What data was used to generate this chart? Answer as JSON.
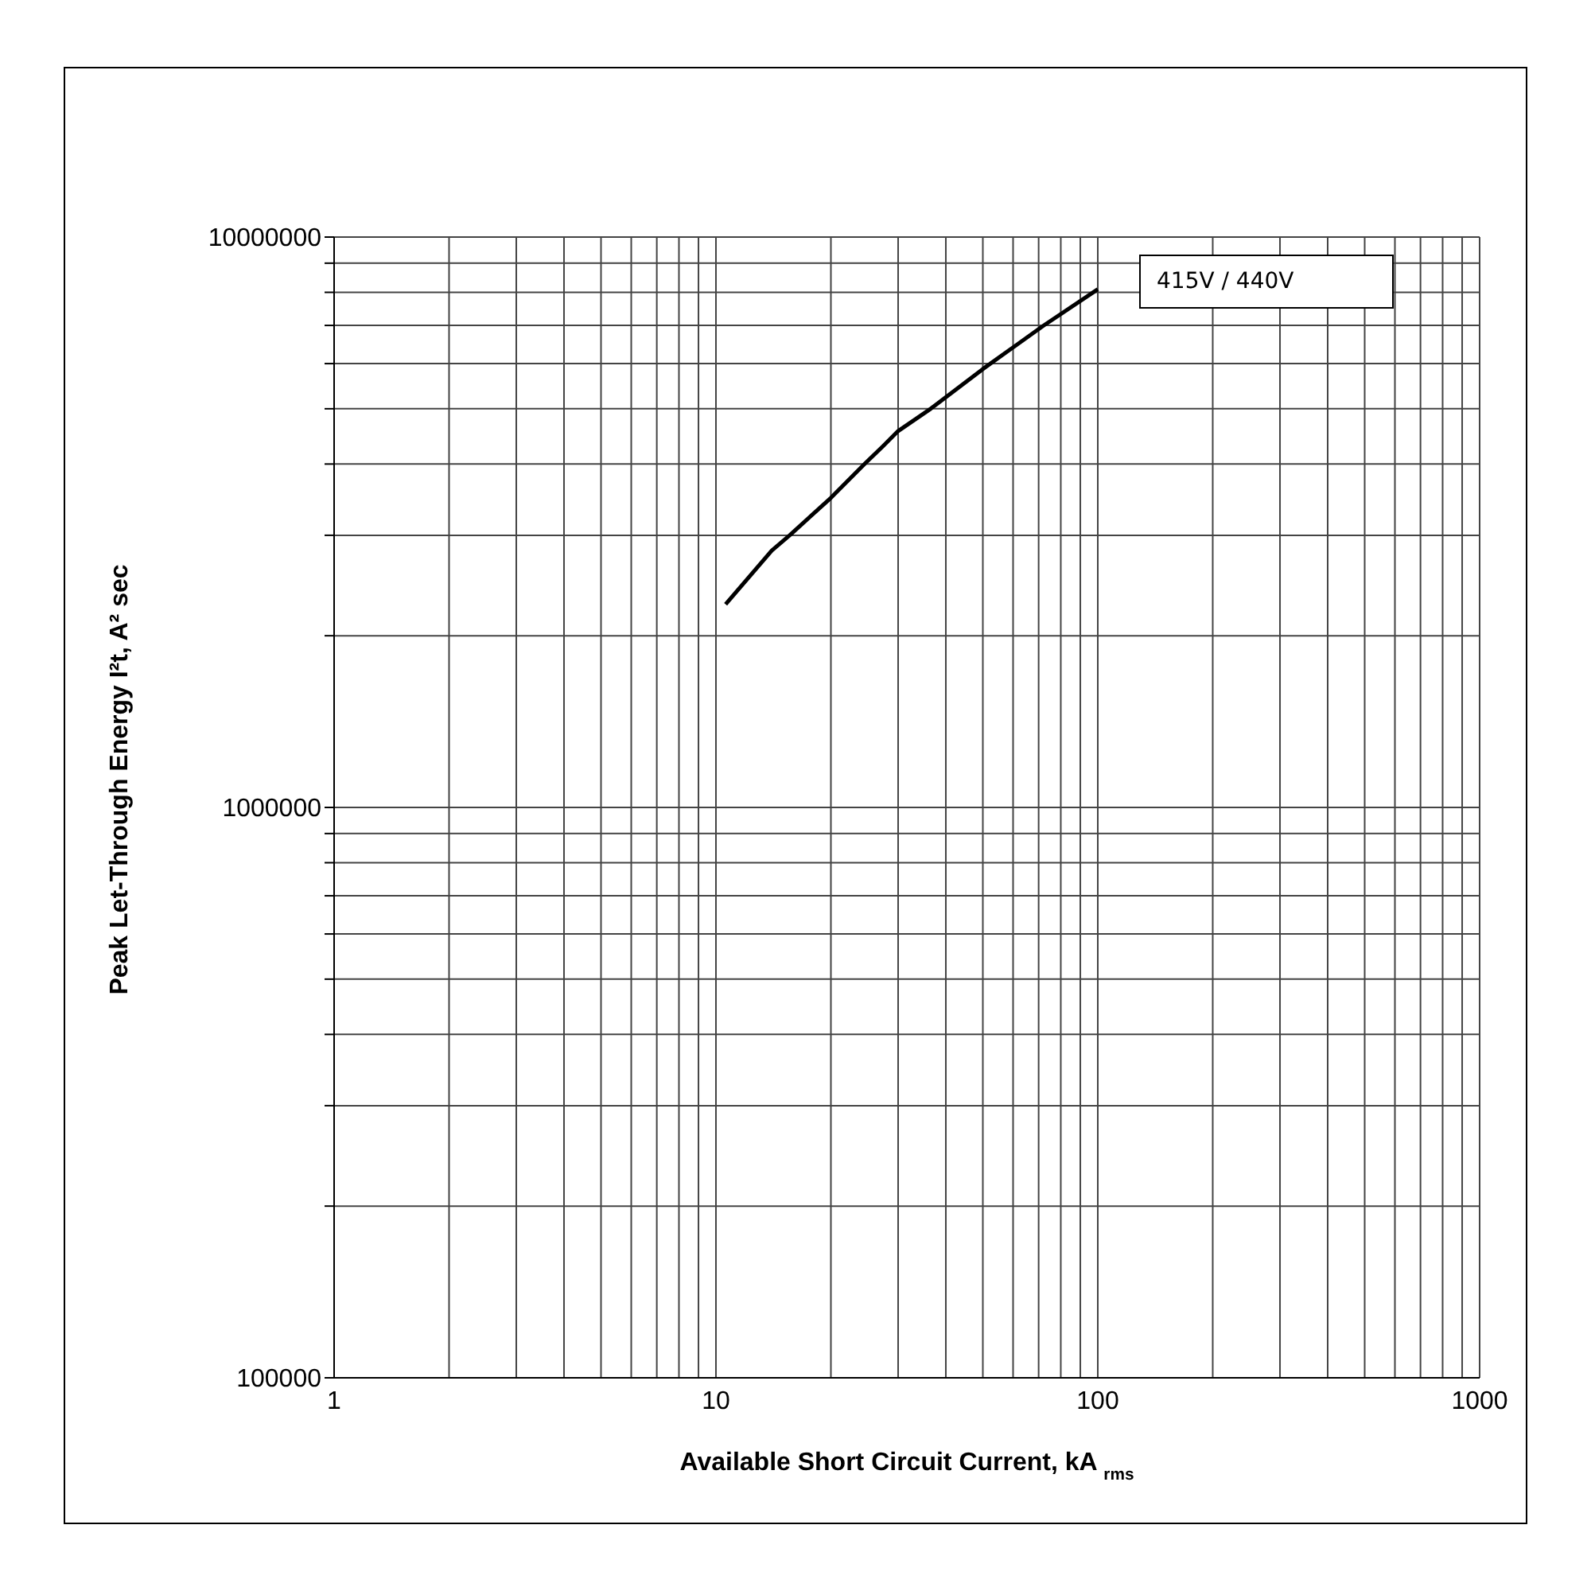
{
  "chart_data": {
    "type": "line",
    "xlabel": "Available Short Circuit Current, kA $_{rms}$",
    "ylabel": "Peak Let-Through Energy I²t, A² sec",
    "x": [
      10.6,
      14.0,
      15.6,
      20,
      24.5,
      27.4,
      30,
      36.5,
      50,
      72,
      100
    ],
    "series": [
      {
        "name": "415V / 440V",
        "color": "#000000",
        "values": [
          2270000,
          2820000,
          3000000,
          3490000,
          4000000,
          4300000,
          4570000,
          5000000,
          5870000,
          6990000,
          8100000
        ]
      }
    ],
    "log": "xy",
    "xlim": [
      1,
      1000
    ],
    "ylim": [
      100000,
      10000000
    ],
    "xticks": [
      1,
      {
        "value": 2,
        "label": null
      },
      {
        "value": 3,
        "label": null
      },
      {
        "value": 4,
        "label": null
      },
      {
        "value": 5,
        "label": null
      },
      {
        "value": 6,
        "label": null
      },
      {
        "value": 7,
        "label": null
      },
      {
        "value": 8,
        "label": null
      },
      {
        "value": 9,
        "label": null
      },
      10,
      {
        "value": 20,
        "label": null
      },
      {
        "value": 30,
        "label": null
      },
      {
        "value": 40,
        "label": null
      },
      {
        "value": 50,
        "label": null
      },
      {
        "value": 60,
        "label": null
      },
      {
        "value": 70,
        "label": null
      },
      {
        "value": 80,
        "label": null
      },
      {
        "value": 90,
        "label": null
      },
      100,
      {
        "value": 200,
        "label": null
      },
      {
        "value": 300,
        "label": null
      },
      {
        "value": 400,
        "label": null
      },
      {
        "value": 500,
        "label": null
      },
      {
        "value": 600,
        "label": null
      },
      {
        "value": 700,
        "label": null
      },
      {
        "value": 800,
        "label": null
      },
      {
        "value": 900,
        "label": null
      },
      1000
    ],
    "yticks": [
      100000,
      {
        "value": 200000,
        "label": null
      },
      {
        "value": 300000,
        "label": null
      },
      {
        "value": 400000,
        "label": null
      },
      {
        "value": 500000,
        "label": null
      },
      {
        "value": 600000,
        "label": null
      },
      {
        "value": 700000,
        "label": null
      },
      {
        "value": 800000,
        "label": null
      },
      {
        "value": 900000,
        "label": null
      },
      1000000,
      {
        "value": 2000000,
        "label": null
      },
      {
        "value": 3000000,
        "label": null
      },
      {
        "value": 4000000,
        "label": null
      },
      {
        "value": 5000000,
        "label": null
      },
      {
        "value": 6000000,
        "label": null
      },
      {
        "value": 7000000,
        "label": null
      },
      {
        "value": 8000000,
        "label": null
      },
      {
        "value": 9000000,
        "label": null
      },
      10000000
    ],
    "grid": true,
    "legend": "top right",
    "marker": "none",
    "line_style": "solid"
  }
}
